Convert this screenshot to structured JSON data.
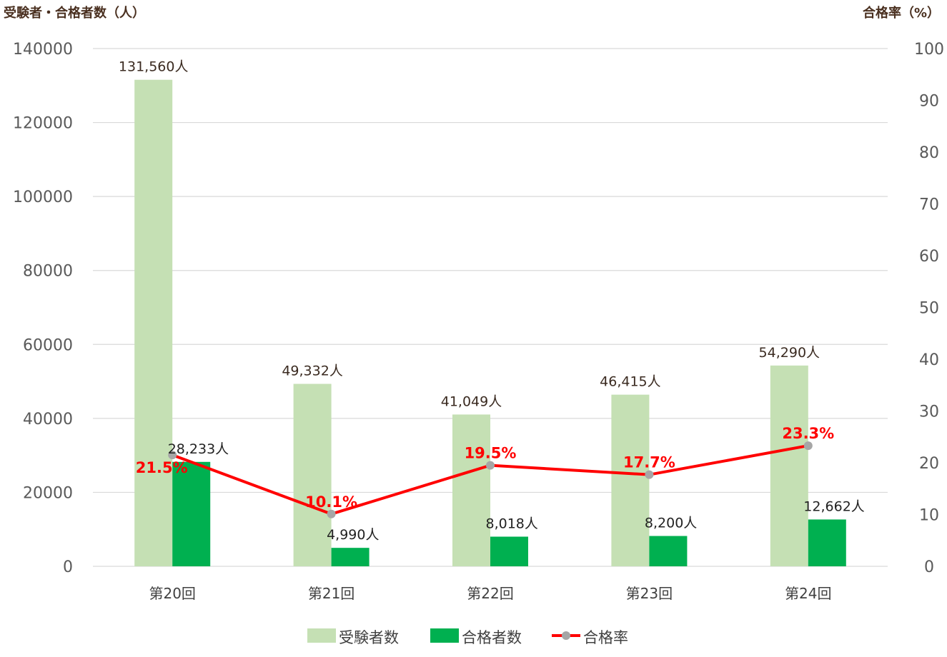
{
  "chart_data": {
    "type": "bar",
    "left_axis_title": "受験者・合格者数（人）",
    "right_axis_title": "合格率（%）",
    "categories": [
      "第20回",
      "第21回",
      "第22回",
      "第23回",
      "第24回"
    ],
    "ylim_left": [
      0,
      140000
    ],
    "left_ticks": [
      "0",
      "20000",
      "40000",
      "60000",
      "80000",
      "100000",
      "120000",
      "140000"
    ],
    "ylim_right": [
      0,
      100
    ],
    "right_ticks": [
      "0",
      "10",
      "20",
      "30",
      "40",
      "50",
      "60",
      "70",
      "80",
      "90",
      "100"
    ],
    "grid": true,
    "legend_position": "bottom",
    "series": [
      {
        "name": "受験者数",
        "kind": "bar",
        "axis": "left",
        "color": "#c5e0b4",
        "values": [
          131560,
          49332,
          41049,
          46415,
          54290
        ],
        "labels": [
          "131,560人",
          "49,332人",
          "41,049人",
          "46,415人",
          "54,290人"
        ]
      },
      {
        "name": "合格者数",
        "kind": "bar",
        "axis": "left",
        "color": "#00b050",
        "values": [
          28233,
          4990,
          8018,
          8200,
          12662
        ],
        "labels": [
          "28,233人",
          "4,990人",
          "8,018人",
          "8,200人",
          "12,662人"
        ]
      },
      {
        "name": "合格率",
        "kind": "line",
        "axis": "right",
        "color": "#ff0000",
        "marker_color": "#a6a6a6",
        "values": [
          21.5,
          10.1,
          19.5,
          17.7,
          23.3
        ],
        "labels": [
          "21.5%",
          "10.1%",
          "19.5%",
          "17.7%",
          "23.3%"
        ]
      }
    ]
  }
}
